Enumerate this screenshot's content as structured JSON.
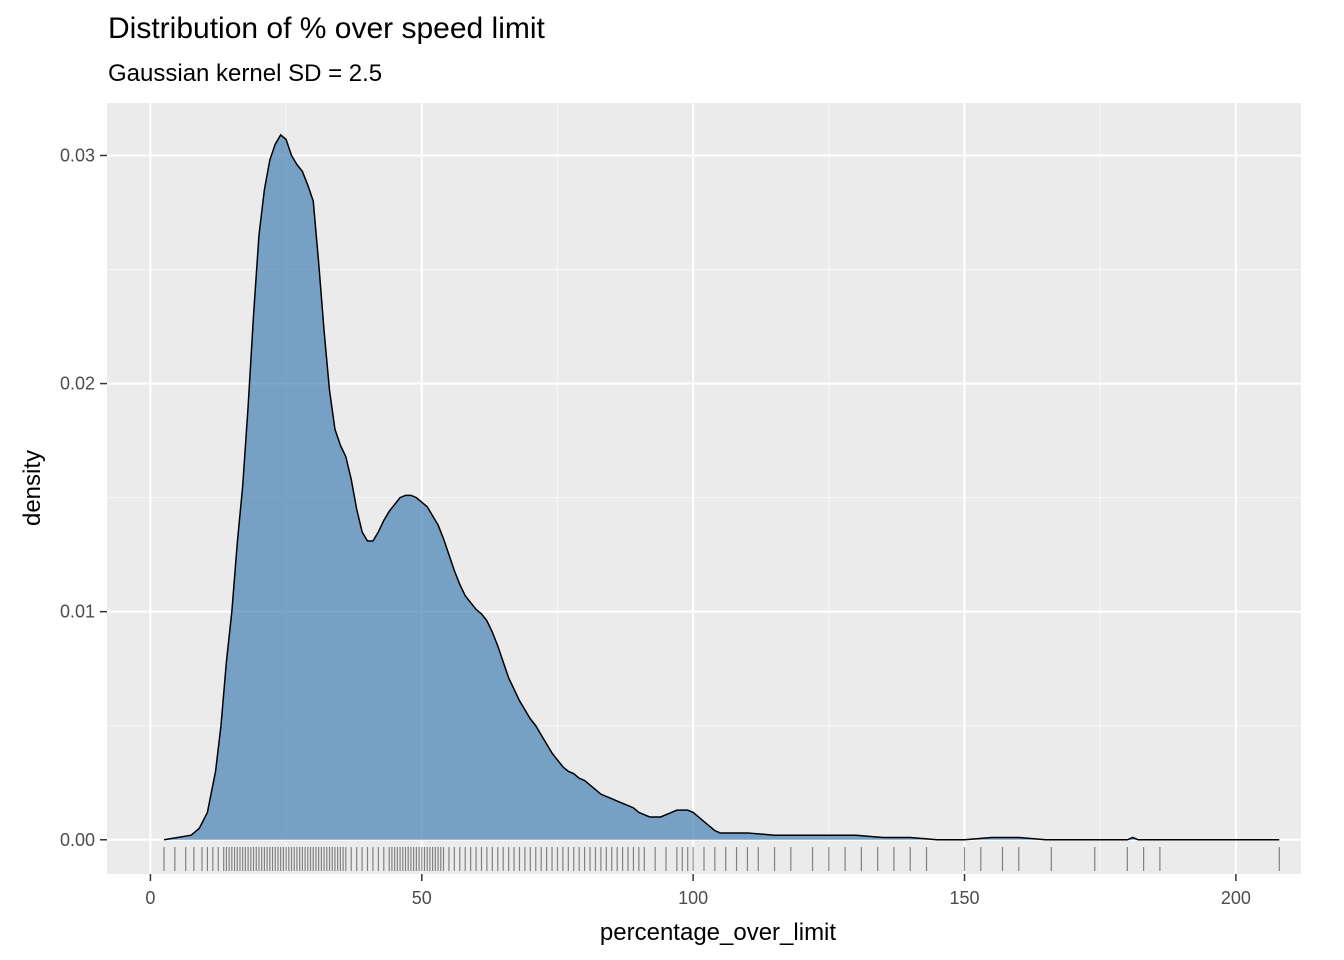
{
  "chart_data": {
    "type": "area",
    "title": "Distribution of % over speed limit",
    "subtitle": "Gaussian kernel SD = 2.5",
    "xlabel": "percentage_over_limit",
    "ylabel": "density",
    "xlim": [
      -8,
      212
    ],
    "ylim": [
      -0.0015,
      0.0323
    ],
    "x_ticks": [
      0,
      50,
      100,
      150,
      200
    ],
    "x_tick_labels": [
      "0",
      "50",
      "100",
      "150",
      "200"
    ],
    "y_ticks": [
      0.0,
      0.01,
      0.02,
      0.03
    ],
    "y_tick_labels": [
      "0.00",
      "0.01",
      "0.02",
      "0.03"
    ],
    "grid": true,
    "colors": {
      "fill": "#4682B4",
      "fill_opacity": 0.7,
      "line": "#000000",
      "panel": "#EBEBEB",
      "grid": "#FFFFFF"
    },
    "series": [
      {
        "x": [
          2.5,
          5,
          7.5,
          9,
          10.5,
          12,
          13,
          14,
          15,
          16,
          17,
          18,
          19,
          20,
          21,
          22,
          23,
          24,
          25,
          26,
          27,
          28,
          29,
          30,
          31,
          32,
          33,
          34,
          35,
          36,
          37,
          38,
          39,
          40,
          41,
          42,
          43,
          44,
          45,
          46,
          47,
          48,
          49,
          50,
          51,
          52,
          53,
          54,
          55,
          56,
          57,
          58,
          59,
          60,
          61,
          62,
          63,
          64,
          65,
          66,
          67,
          68,
          69,
          70,
          71,
          72,
          73,
          74,
          75,
          76,
          77,
          78,
          79,
          80,
          81,
          82,
          83,
          84,
          85,
          86,
          87,
          88,
          89,
          90,
          91,
          92,
          93,
          94,
          95,
          96,
          97,
          98,
          99,
          100,
          101,
          102,
          103,
          104,
          105,
          107,
          110,
          115,
          120,
          125,
          130,
          135,
          140,
          145,
          150,
          155,
          160,
          165,
          170,
          175,
          180,
          181,
          182,
          185,
          190,
          195,
          200,
          205,
          208
        ],
        "y": [
          0.0,
          0.0001,
          0.0002,
          0.0005,
          0.0012,
          0.003,
          0.005,
          0.0078,
          0.01,
          0.013,
          0.0155,
          0.019,
          0.023,
          0.0265,
          0.0285,
          0.0298,
          0.0305,
          0.0309,
          0.0307,
          0.03,
          0.0296,
          0.0293,
          0.0287,
          0.028,
          0.0253,
          0.0223,
          0.0197,
          0.018,
          0.0173,
          0.0168,
          0.0158,
          0.0145,
          0.0135,
          0.0131,
          0.0131,
          0.0135,
          0.014,
          0.0144,
          0.0147,
          0.015,
          0.0151,
          0.0151,
          0.015,
          0.0148,
          0.0146,
          0.0142,
          0.0138,
          0.0132,
          0.0125,
          0.0118,
          0.0112,
          0.0107,
          0.0104,
          0.0101,
          0.0099,
          0.0096,
          0.0091,
          0.0085,
          0.0078,
          0.0071,
          0.0066,
          0.0061,
          0.0057,
          0.0053,
          0.005,
          0.0046,
          0.0042,
          0.0038,
          0.0035,
          0.0032,
          0.003,
          0.0029,
          0.0027,
          0.0026,
          0.0024,
          0.0022,
          0.002,
          0.0019,
          0.0018,
          0.0017,
          0.0016,
          0.0015,
          0.0014,
          0.0012,
          0.0011,
          0.001,
          0.001,
          0.001,
          0.0011,
          0.0012,
          0.0013,
          0.0013,
          0.0013,
          0.0012,
          0.001,
          0.0008,
          0.0006,
          0.0004,
          0.0003,
          0.0003,
          0.0003,
          0.0002,
          0.0002,
          0.0002,
          0.0002,
          0.0001,
          0.0001,
          0.0,
          0.0,
          0.0001,
          0.0001,
          0.0,
          0.0,
          0.0,
          0.0,
          0.0001,
          0.0,
          0.0,
          0.0,
          0.0,
          0.0,
          0.0,
          0.0
        ]
      }
    ],
    "rug": [
      2.5,
      4.5,
      6.5,
      8,
      9.5,
      10.5,
      11.5,
      12.5,
      13.5,
      14,
      14.5,
      15,
      15.5,
      16,
      16.5,
      17,
      17.5,
      18,
      18.5,
      19,
      19.5,
      20,
      20.5,
      21,
      21.5,
      22,
      22.5,
      23,
      23.5,
      24,
      24.5,
      25,
      25.5,
      26,
      26.5,
      27,
      27.5,
      28,
      28.5,
      29,
      29.5,
      30,
      30.5,
      31,
      31.5,
      32,
      32.5,
      33,
      33.5,
      34,
      34.5,
      35,
      35.5,
      36,
      37,
      38,
      39,
      40,
      41,
      42,
      43,
      44,
      44.5,
      45,
      45.5,
      46,
      46.5,
      47,
      47.5,
      48,
      48.5,
      49,
      49.5,
      50,
      50.5,
      51,
      51.5,
      52,
      52.5,
      53,
      53.5,
      54,
      55,
      56,
      57,
      58,
      59,
      60,
      61,
      62,
      63,
      64,
      65,
      66,
      67,
      68,
      69,
      70,
      71,
      72,
      73,
      74,
      75,
      76,
      77,
      78,
      79,
      80,
      81,
      82,
      83,
      84,
      85,
      86,
      87,
      88,
      89,
      90,
      91,
      93,
      95,
      97,
      98,
      99,
      100,
      102,
      104,
      106,
      108,
      110,
      112,
      115,
      118,
      122,
      125,
      128,
      131,
      134,
      137,
      140,
      143,
      150,
      153,
      157,
      160,
      166,
      174,
      180,
      183,
      186,
      208
    ]
  }
}
